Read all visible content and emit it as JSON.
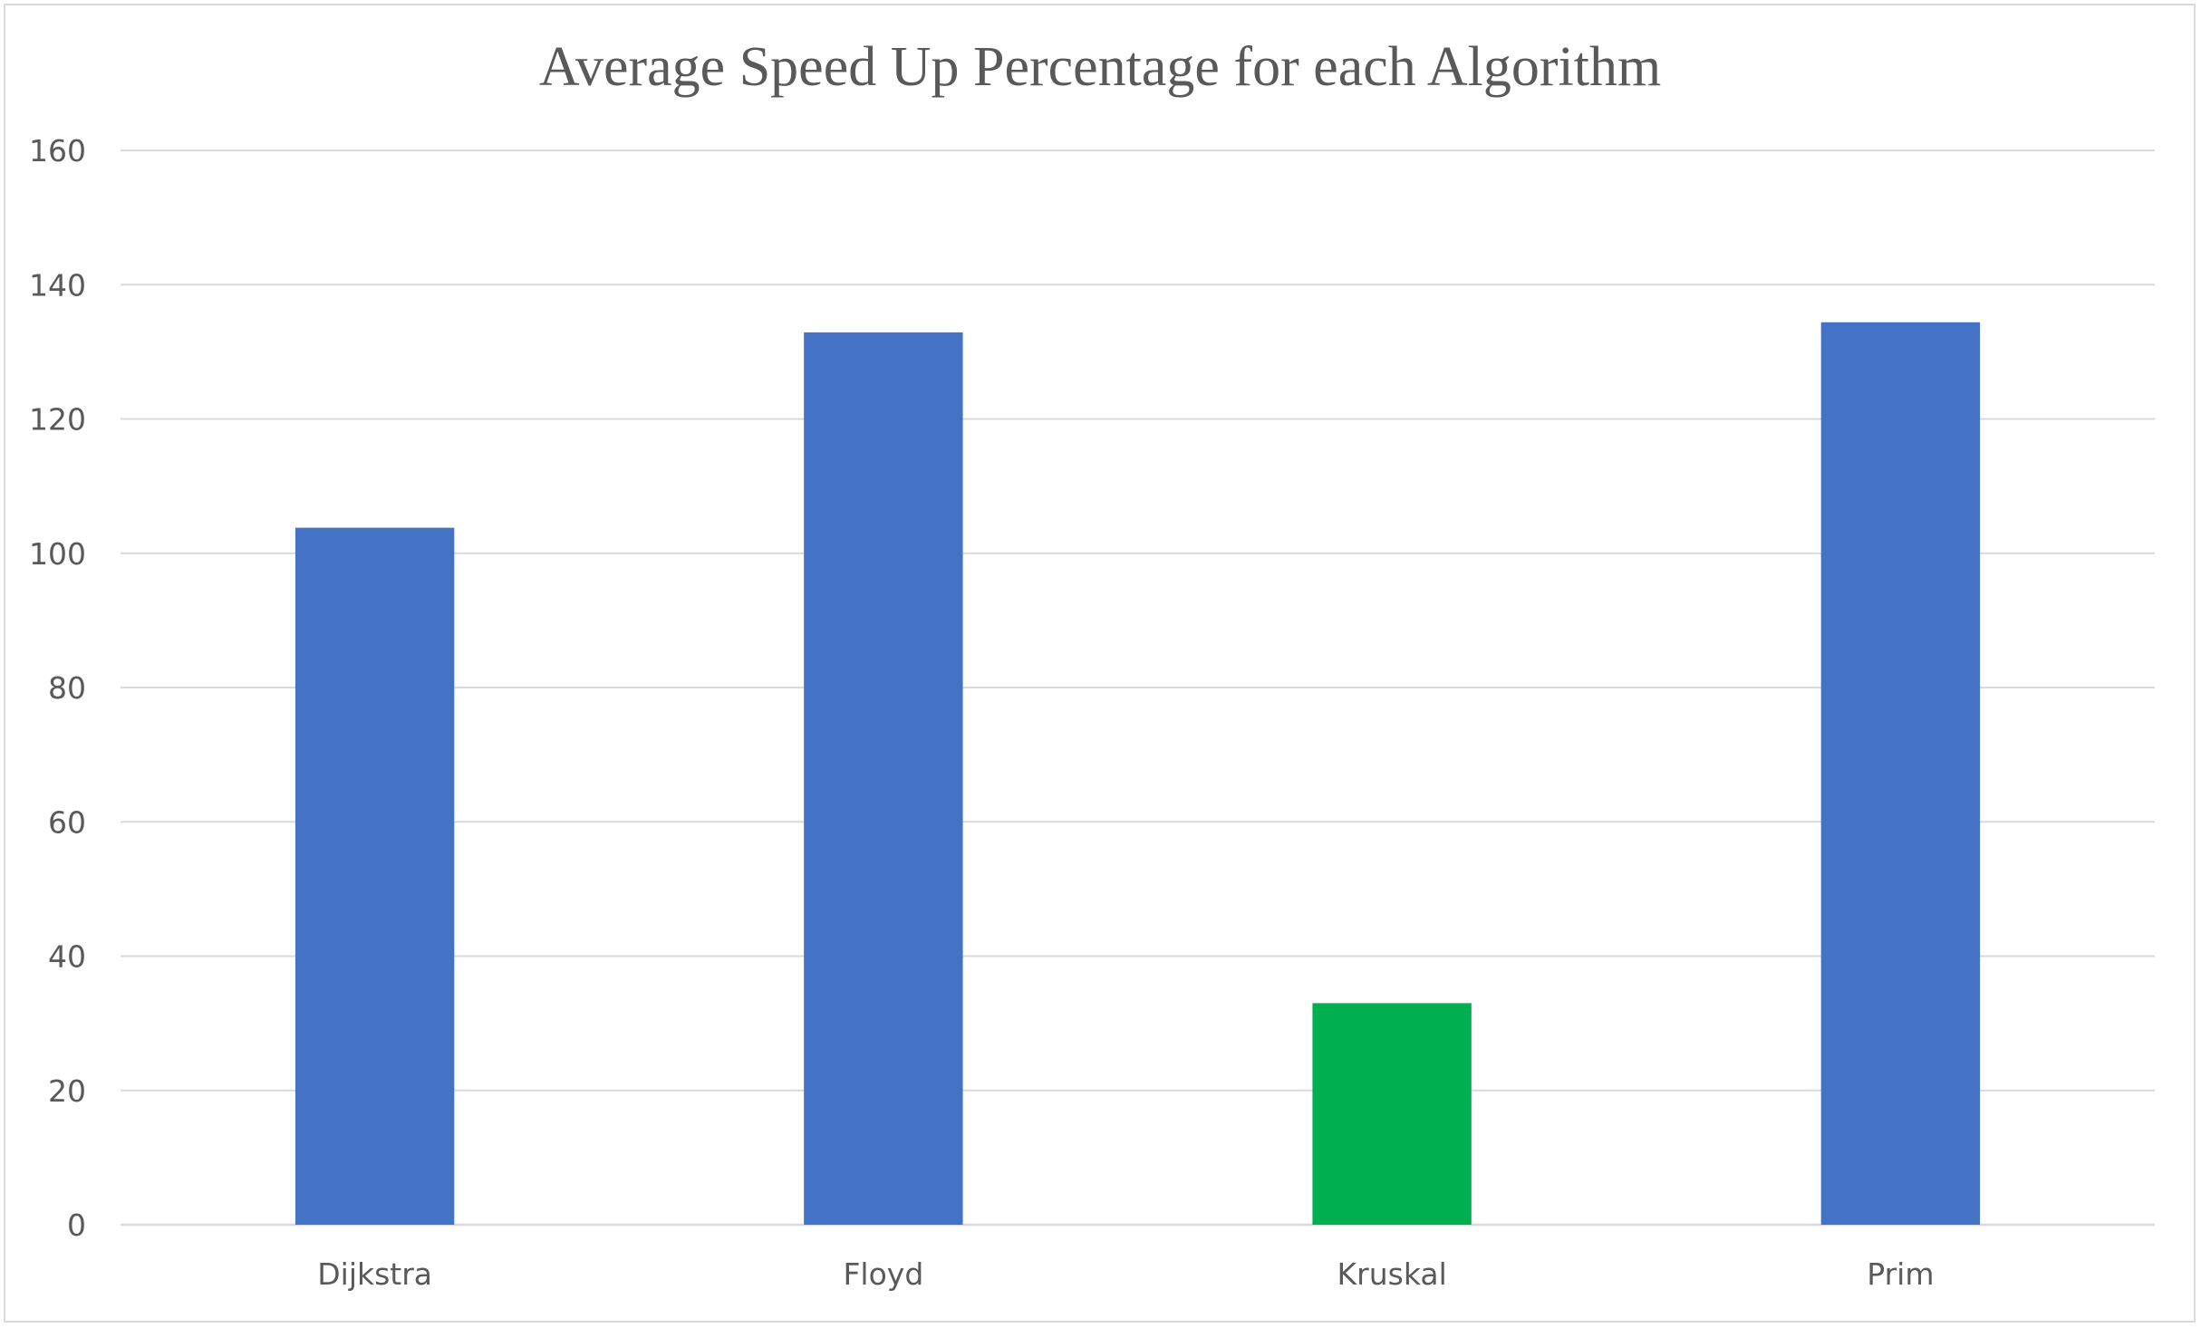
{
  "chart_data": {
    "type": "bar",
    "title": "Average Speed Up Percentage for each Algorithm",
    "xlabel": "",
    "ylabel": "",
    "categories": [
      "Dijkstra",
      "Floyd",
      "Kruskal",
      "Prim"
    ],
    "values": [
      103.8,
      132.9,
      33,
      134.4
    ],
    "bar_colors": [
      "#4472c4",
      "#4472c4",
      "#00b050",
      "#4472c4"
    ],
    "ylim": [
      0,
      160
    ],
    "yticks": [
      0,
      20,
      40,
      60,
      80,
      100,
      120,
      140,
      160
    ],
    "grid": true,
    "legend": "none"
  }
}
